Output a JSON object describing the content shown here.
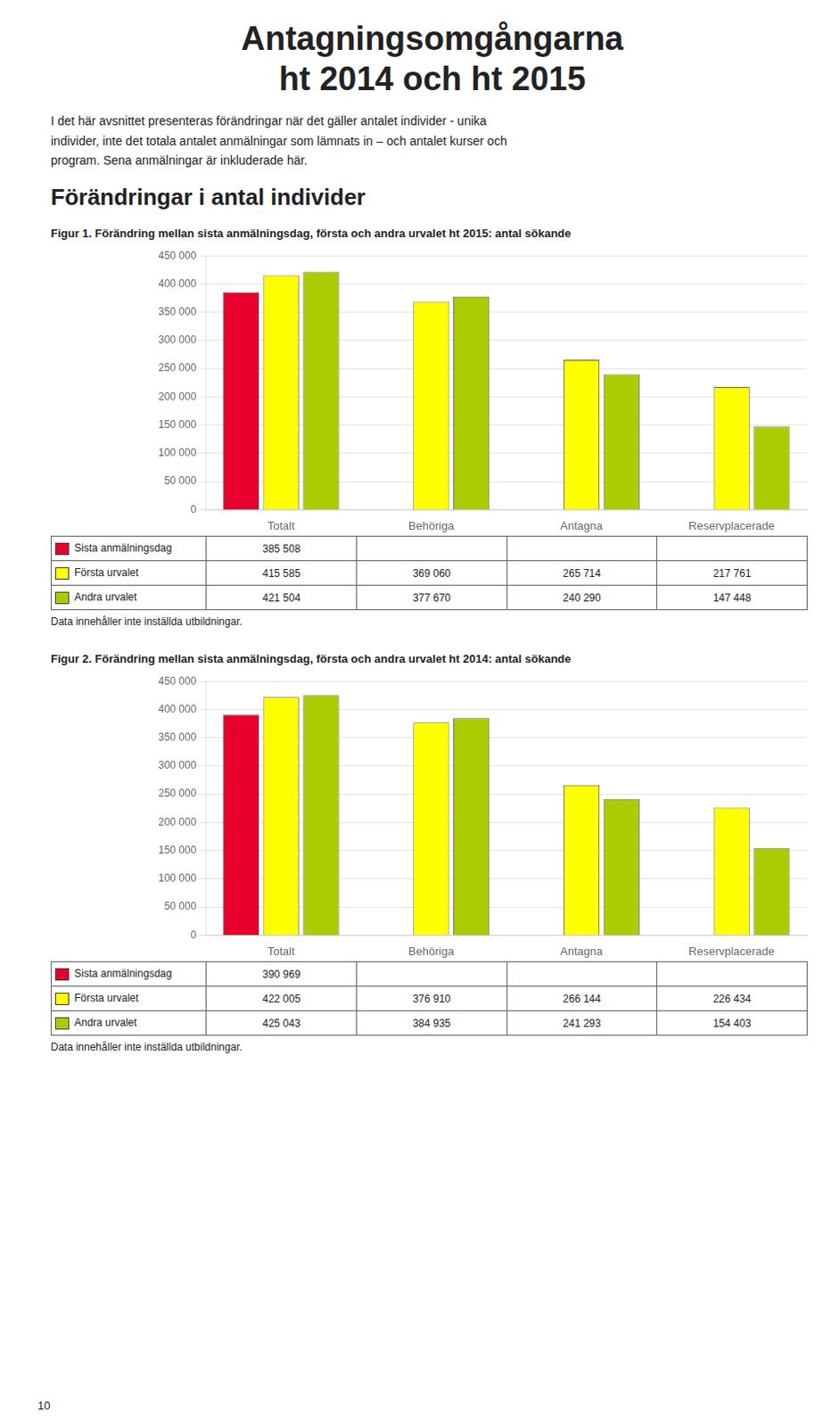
{
  "title": [
    "Antagningsomgångarna",
    "ht 2014 och ht 2015"
  ],
  "text": "I det här avsnittet presenteras förändringar när det gäller antalet individer - unika\nindivider, inte det totala antalet anmälningar som lämnats in – och antalet kurser och\nprogram. Sena anmälningar är inkluderade här.",
  "subtitle": "Förändringar i antal individer",
  "page_number": "10",
  "chart_data": [
    {
      "type": "bar",
      "title": "Figur 1. Förändring mellan sista anmälningsdag, första och andra urvalet ht 2015: antal sökande",
      "categories": [
        "Totalt",
        "Behöriga",
        "Antagna",
        "Reservplacerade"
      ],
      "series": [
        {
          "name": "Sista anmälningsdag",
          "color": "#E8002D",
          "values": [
            385508,
            null,
            null,
            null
          ],
          "value_labels": [
            "385 508",
            null,
            null,
            null
          ]
        },
        {
          "name": "Första urvalet",
          "color": "#FFFF00",
          "values": [
            415585,
            369060,
            265714,
            217761
          ],
          "value_labels": [
            "415 585",
            "369 060",
            "265 714",
            "217 761"
          ]
        },
        {
          "name": "Andra urvalet",
          "color": "#AACC00",
          "values": [
            421504,
            377670,
            240290,
            147448
          ],
          "value_labels": [
            "421 504",
            "377 670",
            "240 290",
            "147 448"
          ]
        }
      ],
      "ylim": [
        0,
        450000
      ],
      "yticks": [
        0,
        {
          "value": 50000,
          "label": "50 000"
        },
        {
          "value": 100000,
          "label": "100 000"
        },
        {
          "value": 150000,
          "label": "150 000"
        },
        {
          "value": 200000,
          "label": "200 000"
        },
        {
          "value": 250000,
          "label": "250 000"
        },
        {
          "value": 300000,
          "label": "300 000"
        },
        {
          "value": 350000,
          "label": "350 000"
        },
        {
          "value": 400000,
          "label": "400 000"
        },
        {
          "value": 450000,
          "label": "450 000"
        }
      ],
      "grid": true,
      "annotations": [
        "Data innehåller inte inställda utbildningar."
      ]
    },
    {
      "type": "bar",
      "title": "Figur 2. Förändring mellan sista anmälningsdag, första och andra urvalet ht 2014: antal sökande",
      "categories": [
        "Totalt",
        "Behöriga",
        "Antagna",
        "Reservplacerade"
      ],
      "series": [
        {
          "name": "Sista anmälningsdag",
          "color": "#E8002D",
          "values": [
            390969,
            null,
            null,
            null
          ],
          "value_labels": [
            "390 969",
            null,
            null,
            null
          ]
        },
        {
          "name": "Första urvalet",
          "color": "#FFFF00",
          "values": [
            422005,
            376910,
            266144,
            226434
          ],
          "value_labels": [
            "422 005",
            "376 910",
            "266 144",
            "226 434"
          ]
        },
        {
          "name": "Andra urvalet",
          "color": "#AACC00",
          "values": [
            425043,
            384935,
            241293,
            154403
          ],
          "value_labels": [
            "425 043",
            "384 935",
            "241 293",
            "154 403"
          ]
        }
      ],
      "ylim": [
        0,
        450000
      ],
      "yticks": [
        0,
        {
          "value": 50000,
          "label": "50 000"
        },
        {
          "value": 100000,
          "label": "100 000"
        },
        {
          "value": 150000,
          "label": "150 000"
        },
        {
          "value": 200000,
          "label": "200 000"
        },
        {
          "value": 250000,
          "label": "250 000"
        },
        {
          "value": 300000,
          "label": "300 000"
        },
        {
          "value": 350000,
          "label": "350 000"
        },
        {
          "value": 400000,
          "label": "400 000"
        },
        {
          "value": 450000,
          "label": "450 000"
        }
      ],
      "grid": true,
      "annotations": [
        "Data innehåller inte inställda utbildningar."
      ]
    }
  ]
}
